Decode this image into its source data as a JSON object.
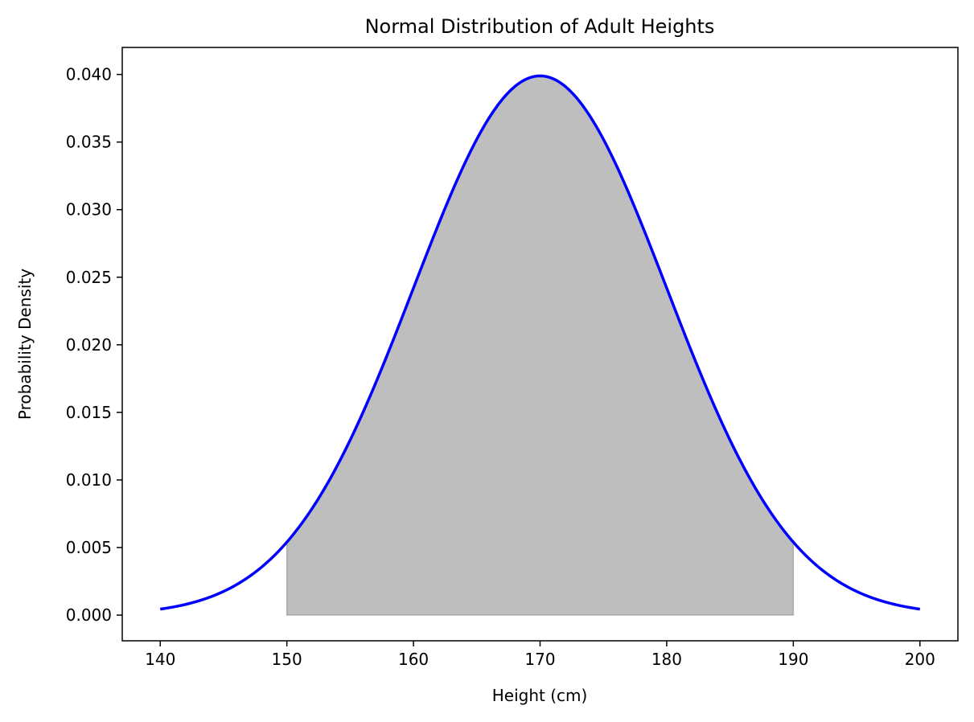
{
  "chart_data": {
    "type": "area",
    "title": "Normal Distribution of Adult Heights",
    "xlabel": "Height (cm)",
    "ylabel": "Probability Density",
    "xlim": [
      137,
      203
    ],
    "ylim": [
      -0.0019,
      0.042
    ],
    "x_ticks": [
      140,
      150,
      160,
      170,
      180,
      190,
      200
    ],
    "x_tick_labels": [
      "140",
      "150",
      "160",
      "170",
      "180",
      "190",
      "200"
    ],
    "y_ticks": [
      0.0,
      0.005,
      0.01,
      0.015,
      0.02,
      0.025,
      0.03,
      0.035,
      0.04
    ],
    "y_tick_labels": [
      "0.000",
      "0.005",
      "0.010",
      "0.015",
      "0.020",
      "0.025",
      "0.030",
      "0.035",
      "0.040"
    ],
    "grid": false,
    "series": [
      {
        "type": "line",
        "color": "#0000ff",
        "x": [
          140,
          142,
          144,
          146,
          148,
          150,
          152,
          154,
          156,
          158,
          160,
          162,
          164,
          166,
          168,
          170,
          172,
          174,
          176,
          178,
          180,
          182,
          184,
          186,
          188,
          190,
          192,
          194,
          196,
          198,
          200
        ],
        "y": [
          0.00044,
          0.00079,
          0.00136,
          0.00224,
          0.00355,
          0.0054,
          0.0079,
          0.01109,
          0.01497,
          0.01942,
          0.0242,
          0.02897,
          0.03332,
          0.03683,
          0.0391,
          0.03989,
          0.0391,
          0.03683,
          0.03332,
          0.02897,
          0.0242,
          0.01942,
          0.01497,
          0.01109,
          0.0079,
          0.0054,
          0.00355,
          0.00224,
          0.00136,
          0.00079,
          0.00044
        ]
      }
    ],
    "shaded_region": {
      "x_from": 150,
      "x_to": 190,
      "color": "#bebebe"
    }
  }
}
